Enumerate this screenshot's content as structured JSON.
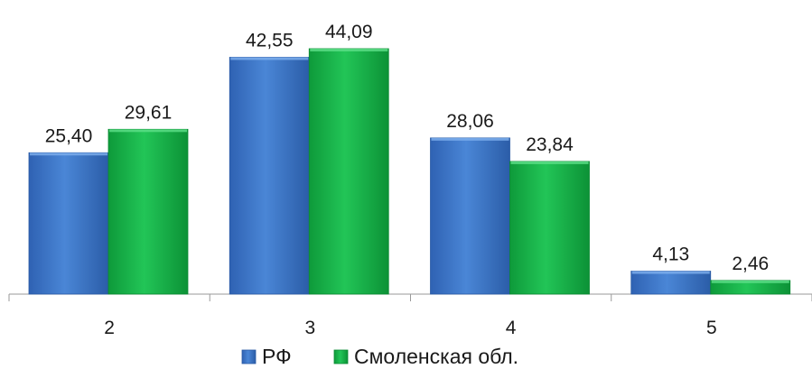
{
  "chart_data": {
    "type": "bar",
    "categories": [
      "2",
      "3",
      "4",
      "5"
    ],
    "series": [
      {
        "name": "РФ",
        "values": [
          "25,40",
          "42,55",
          "28,06",
          "4,13"
        ],
        "color": "#3f78c9"
      },
      {
        "name": "Смоленская обл.",
        "values": [
          "29,61",
          "44,09",
          "23,84",
          "2,46"
        ],
        "color": "#19b44a"
      }
    ],
    "ylim": [
      0,
      50
    ],
    "grid": false,
    "legend": "bottom"
  }
}
